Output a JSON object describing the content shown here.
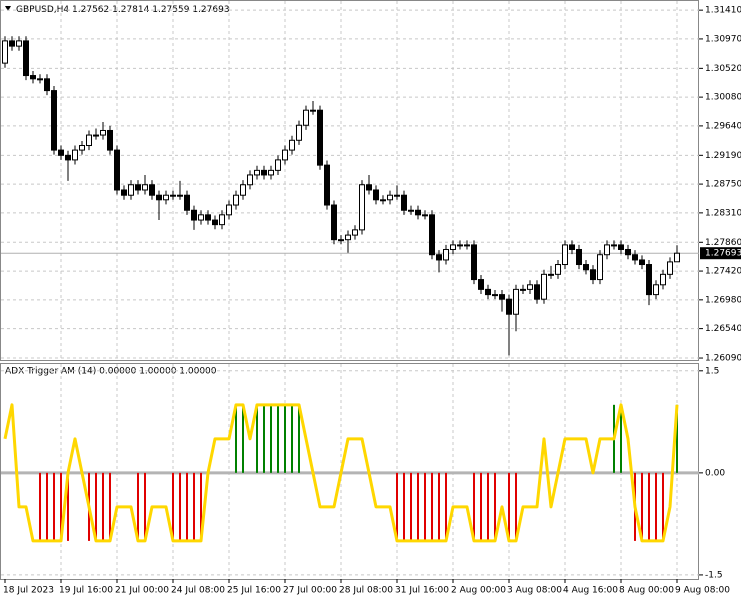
{
  "chart_data": [
    {
      "type": "candlestick",
      "title": "GBPUSD,H4",
      "grid": true,
      "color_up": "#ffffff",
      "color_down": "#000000",
      "last_price_line": true,
      "categories": [
        "18 Jul 2023",
        null,
        null,
        null,
        null,
        null,
        null,
        null,
        "19 Jul 16:00",
        null,
        null,
        null,
        null,
        null,
        null,
        null,
        "21 Jul 00:00",
        null,
        null,
        null,
        null,
        null,
        null,
        null,
        "24 Jul 08:00",
        null,
        null,
        null,
        null,
        null,
        null,
        null,
        "25 Jul 16:00",
        null,
        null,
        null,
        null,
        null,
        null,
        null,
        "27 Jul 00:00",
        null,
        null,
        null,
        null,
        null,
        null,
        null,
        "28 Jul 08:00",
        null,
        null,
        null,
        null,
        null,
        null,
        null,
        "31 Jul 16:00",
        null,
        null,
        null,
        null,
        null,
        null,
        null,
        "2 Aug 00:00",
        null,
        null,
        null,
        null,
        null,
        null,
        null,
        "3 Aug 08:00",
        null,
        null,
        null,
        null,
        null,
        null,
        null,
        "4 Aug 16:00",
        null,
        null,
        null,
        null,
        null,
        null,
        null,
        "8 Aug 00:00",
        null,
        null,
        null,
        null,
        null,
        null,
        null,
        "9 Aug 08:00"
      ],
      "open": [
        1.306,
        1.3094,
        1.3086,
        1.3094,
        1.3041,
        1.3036,
        1.3036,
        1.3018,
        1.2927,
        1.2919,
        1.2912,
        1.2927,
        1.2934,
        1.295,
        1.295,
        1.2957,
        1.2927,
        1.2866,
        1.2858,
        1.2874,
        1.2866,
        1.2874,
        1.2858,
        1.2851,
        1.2858,
        1.2858,
        1.2858,
        1.2835,
        1.282,
        1.2828,
        1.282,
        1.2813,
        1.2828,
        1.2843,
        1.2858,
        1.2874,
        1.2889,
        1.2896,
        1.2889,
        1.2896,
        1.2912,
        1.2927,
        1.2942,
        1.2965,
        1.2988,
        1.2988,
        1.2904,
        1.2843,
        1.279,
        1.279,
        1.2797,
        1.2805,
        1.2874,
        1.2866,
        1.2851,
        1.2851,
        1.2858,
        1.2858,
        1.2835,
        1.2835,
        1.2828,
        1.2828,
        1.2767,
        1.2759,
        1.2775,
        1.2782,
        1.2782,
        1.2782,
        1.2729,
        1.2714,
        1.2706,
        1.2706,
        1.2699,
        1.2676,
        1.2714,
        1.2714,
        1.2721,
        1.2699,
        1.2737,
        1.2737,
        1.2752,
        1.2782,
        1.2775,
        1.2752,
        1.2744,
        1.2729,
        1.2767,
        1.2782,
        1.2782,
        1.2775,
        1.2767,
        1.2759,
        1.2752,
        1.2706,
        1.2721,
        1.2737,
        1.27562
      ],
      "high": [
        1.3101,
        1.3101,
        1.3101,
        1.3101,
        1.3048,
        1.3043,
        1.3043,
        1.3025,
        1.2934,
        1.2926,
        1.2934,
        1.2941,
        1.2957,
        1.296,
        1.297,
        1.2964,
        1.2934,
        1.2873,
        1.2881,
        1.2881,
        1.2889,
        1.2881,
        1.2865,
        1.2865,
        1.2865,
        1.288,
        1.2865,
        1.2842,
        1.2835,
        1.2835,
        1.2827,
        1.2835,
        1.285,
        1.2865,
        1.2881,
        1.2896,
        1.2903,
        1.2903,
        1.2903,
        1.2919,
        1.2934,
        1.2949,
        1.2972,
        1.2995,
        1.3002,
        1.2995,
        1.2911,
        1.285,
        1.2797,
        1.2804,
        1.2812,
        1.2881,
        1.2889,
        1.2873,
        1.2858,
        1.2865,
        1.2873,
        1.2865,
        1.2842,
        1.2842,
        1.2835,
        1.2835,
        1.2774,
        1.2782,
        1.2789,
        1.2789,
        1.2789,
        1.2789,
        1.2736,
        1.2721,
        1.2713,
        1.2713,
        1.2706,
        1.2721,
        1.2721,
        1.2728,
        1.2728,
        1.2744,
        1.275,
        1.2759,
        1.2789,
        1.2789,
        1.2782,
        1.2759,
        1.2751,
        1.2774,
        1.2789,
        1.2789,
        1.2789,
        1.2782,
        1.2774,
        1.2766,
        1.2759,
        1.2728,
        1.2744,
        1.2763,
        1.27814
      ],
      "low": [
        1.3053,
        1.3079,
        1.3079,
        1.3034,
        1.3029,
        1.3029,
        1.3011,
        1.292,
        1.2912,
        1.288,
        1.2905,
        1.292,
        1.2927,
        1.2943,
        1.2943,
        1.292,
        1.2859,
        1.2851,
        1.2851,
        1.2859,
        1.2859,
        1.2851,
        1.282,
        1.2844,
        1.2851,
        1.2851,
        1.2828,
        1.2805,
        1.2813,
        1.2813,
        1.2806,
        1.2806,
        1.2821,
        1.2836,
        1.2851,
        1.2867,
        1.2882,
        1.2882,
        1.2882,
        1.2889,
        1.2905,
        1.292,
        1.2935,
        1.2958,
        1.2981,
        1.2897,
        1.2836,
        1.2783,
        1.2783,
        1.277,
        1.279,
        1.2798,
        1.2859,
        1.2844,
        1.2844,
        1.2844,
        1.2851,
        1.2828,
        1.2828,
        1.2821,
        1.2821,
        1.276,
        1.274,
        1.2752,
        1.2768,
        1.2775,
        1.2775,
        1.2722,
        1.2707,
        1.2699,
        1.2699,
        1.268,
        1.2613,
        1.265,
        1.2707,
        1.2707,
        1.2692,
        1.2692,
        1.273,
        1.273,
        1.2745,
        1.2768,
        1.2745,
        1.2737,
        1.2722,
        1.2722,
        1.276,
        1.2775,
        1.2768,
        1.276,
        1.2752,
        1.2745,
        1.269,
        1.2699,
        1.2714,
        1.273,
        1.27559
      ],
      "close": [
        1.3094,
        1.3086,
        1.3094,
        1.3041,
        1.3036,
        1.3036,
        1.3018,
        1.2927,
        1.2919,
        1.2912,
        1.2927,
        1.2934,
        1.295,
        1.295,
        1.2957,
        1.2927,
        1.2866,
        1.2858,
        1.2874,
        1.2866,
        1.2874,
        1.2858,
        1.2851,
        1.2858,
        1.2858,
        1.2858,
        1.2835,
        1.282,
        1.2828,
        1.282,
        1.2813,
        1.2828,
        1.2843,
        1.2858,
        1.2874,
        1.2889,
        1.2896,
        1.2889,
        1.2896,
        1.2912,
        1.2927,
        1.2942,
        1.2965,
        1.2988,
        1.2988,
        1.2904,
        1.2843,
        1.279,
        1.279,
        1.2797,
        1.2805,
        1.2874,
        1.2866,
        1.2851,
        1.2851,
        1.2858,
        1.2858,
        1.2835,
        1.2835,
        1.2828,
        1.2828,
        1.2767,
        1.2759,
        1.2775,
        1.2782,
        1.2782,
        1.2782,
        1.2729,
        1.2714,
        1.2706,
        1.2706,
        1.2699,
        1.2676,
        1.2714,
        1.2714,
        1.2721,
        1.2699,
        1.2737,
        1.2737,
        1.2752,
        1.2782,
        1.2775,
        1.2752,
        1.2744,
        1.2729,
        1.2767,
        1.2782,
        1.2782,
        1.2775,
        1.2767,
        1.2759,
        1.2752,
        1.2706,
        1.2721,
        1.2737,
        1.2756,
        1.27693
      ],
      "ylim": [
        1.2606,
        1.3155
      ],
      "yticks": [
        {
          "value": 1.3141,
          "label": "1.31410"
        },
        {
          "value": 1.3097,
          "label": "1.30970"
        },
        {
          "value": 1.3052,
          "label": "1.30520"
        },
        {
          "value": 1.3008,
          "label": "1.30080"
        },
        {
          "value": 1.2964,
          "label": "1.29640"
        },
        {
          "value": 1.2919,
          "label": "1.29190"
        },
        {
          "value": 1.2875,
          "label": "1.28750"
        },
        {
          "value": 1.2831,
          "label": "1.28310"
        },
        {
          "value": 1.2786,
          "label": "1.27860"
        },
        {
          "value": 1.2742,
          "label": "1.27420"
        },
        {
          "value": 1.2698,
          "label": "1.26980"
        },
        {
          "value": 1.2654,
          "label": "1.26540"
        },
        {
          "value": 1.2609,
          "label": "1.26090"
        }
      ]
    },
    {
      "type": "indicator",
      "title": "ADX Trigger AM (14) 0.00000 1.00000 1.00000",
      "grid": true,
      "ylim": [
        -1.56,
        1.6
      ],
      "yticks": [
        1.5,
        {
          "value": 0,
          "label": "0.00"
        },
        -1.5
      ],
      "series": [
        {
          "type": "bar",
          "color": "#008000",
          "negative_color": "#e00000",
          "values": [
            0,
            0,
            0,
            0,
            0,
            -1,
            -1,
            -1,
            -1,
            -1,
            0,
            0,
            -1,
            -1,
            -1,
            -1,
            0,
            0,
            0,
            -1,
            -1,
            0,
            0,
            0,
            -1,
            -1,
            -1,
            -1,
            -1,
            0,
            0,
            0,
            0,
            1,
            1,
            0,
            1,
            1,
            1,
            1,
            1,
            1,
            1,
            0,
            0,
            0,
            0,
            0,
            0,
            0,
            0,
            0,
            0,
            0,
            0,
            0,
            -1,
            -1,
            -1,
            -1,
            -1,
            -1,
            -1,
            -1,
            0,
            0,
            0,
            -1,
            -1,
            -1,
            -1,
            0,
            -1,
            -1,
            0,
            0,
            0,
            0,
            0,
            0,
            0,
            0,
            0,
            0,
            0,
            0,
            0,
            1,
            1,
            0,
            -1,
            -1,
            -1,
            -1,
            -1,
            0,
            1
          ]
        },
        {
          "type": "line",
          "color": "#ffd700",
          "values": [
            0.5,
            1,
            -0.5,
            -0.5,
            -1,
            -1,
            -1,
            -1,
            -1,
            0,
            0.5,
            0,
            -0.5,
            -1,
            -1,
            -1,
            -0.5,
            -0.5,
            -0.5,
            -1,
            -1,
            -0.5,
            -0.5,
            -0.5,
            -1,
            -1,
            -1,
            -1,
            -1,
            0,
            0.5,
            0.5,
            0.5,
            1,
            1,
            0.5,
            1,
            1,
            1,
            1,
            1,
            1,
            1,
            0.5,
            0,
            -0.5,
            -0.5,
            -0.5,
            0,
            0.5,
            0.5,
            0.5,
            0,
            -0.5,
            -0.5,
            -0.5,
            -1,
            -1,
            -1,
            -1,
            -1,
            -1,
            -1,
            -1,
            -0.5,
            -0.5,
            -0.5,
            -1,
            -1,
            -1,
            -1,
            -0.5,
            -1,
            -1,
            -0.5,
            -0.5,
            -0.5,
            0.5,
            -0.5,
            0,
            0.5,
            0.5,
            0.5,
            0.5,
            0,
            0.5,
            0.5,
            0.5,
            1,
            0.5,
            -0.5,
            -1,
            -1,
            -1,
            -1,
            -0.5,
            1
          ]
        }
      ]
    }
  ]
}
